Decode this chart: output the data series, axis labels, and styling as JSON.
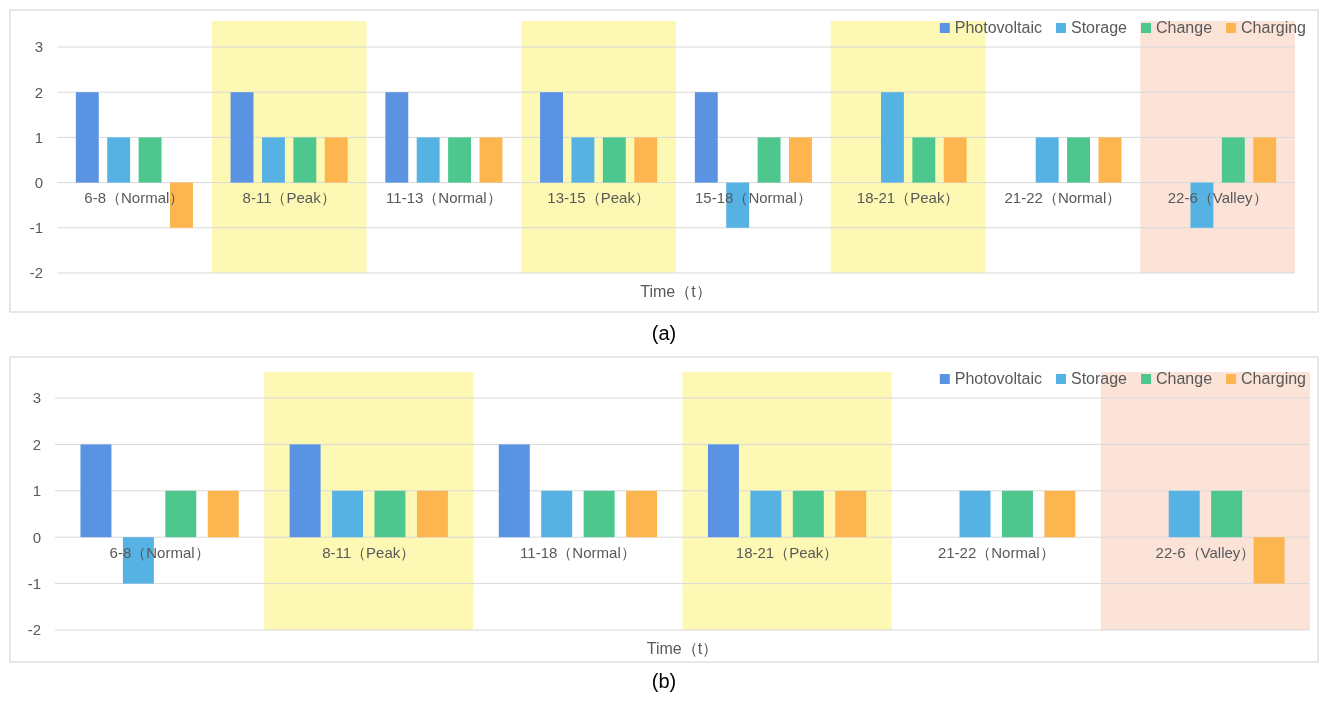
{
  "chart_data": [
    {
      "type": "bar",
      "title": "(a)",
      "xlabel": "Time（t）",
      "categories": [
        "6-8（Normal）",
        "8-11（Peak）",
        "11-13（Normal）",
        "13-15（Peak）",
        "15-18（Normal）",
        "18-21（Peak）",
        "21-22（Normal）",
        "22-6（Valley）"
      ],
      "series": [
        {
          "name": "Photovoltaic",
          "color": "#5b93e3",
          "values": [
            2,
            2,
            2,
            2,
            2,
            0,
            0,
            0
          ]
        },
        {
          "name": "Storage",
          "color": "#55b2e2",
          "values": [
            1,
            1,
            1,
            1,
            -1,
            2,
            1,
            -1
          ]
        },
        {
          "name": "Change",
          "color": "#4ec78f",
          "values": [
            1,
            1,
            1,
            1,
            1,
            1,
            1,
            1
          ]
        },
        {
          "name": "Charging",
          "color": "#fdb54f",
          "values": [
            -1,
            1,
            1,
            1,
            1,
            1,
            1,
            1
          ]
        }
      ],
      "ylim": [
        -2,
        3
      ],
      "yticks": [
        -2,
        -1,
        0,
        1,
        2,
        3
      ],
      "grid": "y",
      "legend": "top right",
      "bands": [
        {
          "axis": "x",
          "from": "8-11（Peak）",
          "to": "8-11（Peak）",
          "color": "#fdf9b4"
        },
        {
          "axis": "x",
          "from": "13-15（Peak）",
          "to": "13-15（Peak）",
          "color": "#fdf9b4"
        },
        {
          "axis": "x",
          "from": "18-21（Peak）",
          "to": "18-21（Peak）",
          "color": "#fdf9b4"
        },
        {
          "axis": "x",
          "from": "22-6（Valley）",
          "to": "22-6（Valley）",
          "color": "#fbe3d7"
        }
      ]
    },
    {
      "type": "bar",
      "title": "(b)",
      "xlabel": "Time（t）",
      "categories": [
        "6-8（Normal）",
        "8-11（Peak）",
        "11-18（Normal）",
        "18-21（Peak）",
        "21-22（Normal）",
        "22-6（Valley）"
      ],
      "series": [
        {
          "name": "Photovoltaic",
          "color": "#5b93e3",
          "values": [
            2,
            2,
            2,
            2,
            0,
            0
          ]
        },
        {
          "name": "Storage",
          "color": "#55b2e2",
          "values": [
            -1,
            1,
            1,
            1,
            1,
            1
          ]
        },
        {
          "name": "Change",
          "color": "#4ec78f",
          "values": [
            1,
            1,
            1,
            1,
            1,
            1
          ]
        },
        {
          "name": "Charging",
          "color": "#fdb54f",
          "values": [
            1,
            1,
            1,
            1,
            1,
            -1
          ]
        }
      ],
      "ylim": [
        -2,
        3
      ],
      "yticks": [
        -2,
        -1,
        0,
        1,
        2,
        3
      ],
      "grid": "y",
      "legend": "top right",
      "bands": [
        {
          "axis": "x",
          "from": "8-11（Peak）",
          "to": "8-11（Peak）",
          "color": "#fdf9b4"
        },
        {
          "axis": "x",
          "from": "18-21（Peak）",
          "to": "18-21（Peak）",
          "color": "#fdf9b4"
        },
        {
          "axis": "x",
          "from": "22-6（Valley）",
          "to": "22-6（Valley）",
          "color": "#fbe3d7"
        }
      ]
    }
  ]
}
